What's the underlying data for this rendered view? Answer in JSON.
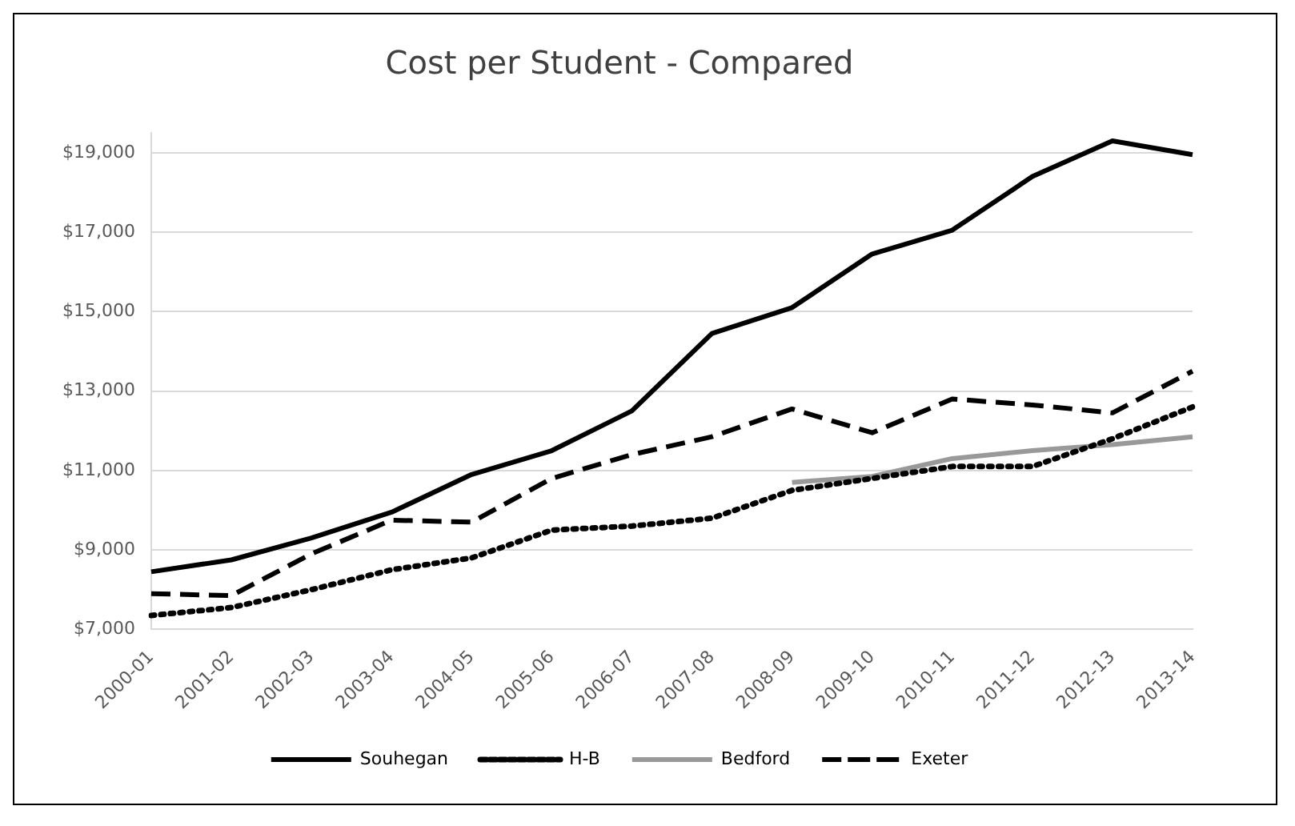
{
  "chart_data": {
    "type": "line",
    "title": "Cost per Student - Compared",
    "categories": [
      "2000-01",
      "2001-02",
      "2002-03",
      "2003-04",
      "2004-05",
      "2005-06",
      "2006-07",
      "2007-08",
      "2008-09",
      "2009-10",
      "2010-11",
      "2011-12",
      "2012-13",
      "2013-14"
    ],
    "series": [
      {
        "name": "Souhegan",
        "color": "#000000",
        "line_style": "solid",
        "values": [
          8450,
          8750,
          9300,
          9950,
          10900,
          11500,
          12500,
          14450,
          15100,
          16450,
          17050,
          18400,
          19300,
          18950
        ]
      },
      {
        "name": "H-B",
        "color": "#000000",
        "line_style": "dotted",
        "values": [
          7350,
          7550,
          8000,
          8500,
          8800,
          9500,
          9600,
          9800,
          10500,
          10800,
          11100,
          11100,
          11800,
          12600
        ]
      },
      {
        "name": "Bedford",
        "color": "#999999",
        "line_style": "solid",
        "values": [
          null,
          null,
          null,
          null,
          null,
          null,
          null,
          null,
          10700,
          10850,
          11300,
          11500,
          11650,
          11850
        ]
      },
      {
        "name": "Exeter",
        "color": "#000000",
        "line_style": "dashed",
        "values": [
          7900,
          7850,
          8900,
          9750,
          9700,
          10800,
          11400,
          11850,
          12550,
          11950,
          12800,
          12650,
          12450,
          13500
        ]
      }
    ],
    "ylim": [
      7000,
      19500
    ],
    "yticks": [
      {
        "value": 7000,
        "label": "$7,000"
      },
      {
        "value": 9000,
        "label": "$9,000"
      },
      {
        "value": 11000,
        "label": "$11,000"
      },
      {
        "value": 13000,
        "label": "$13,000"
      },
      {
        "value": 15000,
        "label": "$15,000"
      },
      {
        "value": 17000,
        "label": "$17,000"
      },
      {
        "value": 19000,
        "label": "$19,000"
      }
    ],
    "grid": "y",
    "legend": "bottom",
    "marker": "none"
  }
}
